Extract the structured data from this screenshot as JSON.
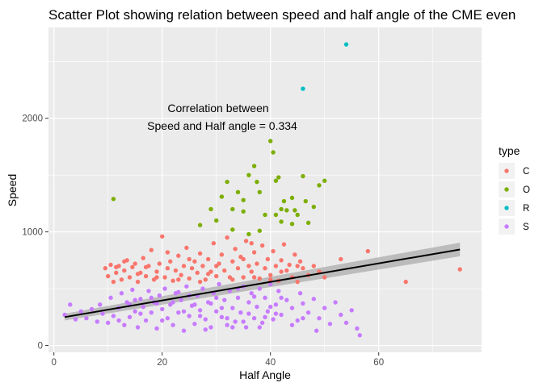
{
  "chart_data": {
    "type": "scatter",
    "title": "Scatter Plot showing relation between speed and half angle of the CME even",
    "xlabel": "Half Angle",
    "ylabel": "Speed",
    "xlim": [
      -1,
      79
    ],
    "ylim": [
      -60,
      2800
    ],
    "x_ticks": [
      0,
      20,
      40,
      60
    ],
    "y_ticks": [
      0,
      1000,
      2000
    ],
    "x_tick_labels": [
      "0",
      "20",
      "40",
      "60"
    ],
    "y_tick_labels": [
      "0",
      "1000",
      "2000"
    ],
    "grid": true,
    "legend": {
      "title": "type",
      "placement": "right",
      "entries": [
        {
          "label": "C",
          "color": "#F8766D"
        },
        {
          "label": "O",
          "color": "#7CAE00"
        },
        {
          "label": "R",
          "color": "#00BFC4"
        },
        {
          "label": "S",
          "color": "#C77CFF"
        }
      ]
    },
    "annotation": {
      "lines": [
        "Correlation between",
        "Speed and Half angle = 0.334"
      ],
      "x": 31.5,
      "y": 1925
    },
    "series": [
      {
        "name": "C",
        "color": "#F8766D",
        "points": [
          [
            9.5,
            680
          ],
          [
            10,
            610
          ],
          [
            10.5,
            710
          ],
          [
            11,
            560
          ],
          [
            11.5,
            640
          ],
          [
            12,
            700
          ],
          [
            12.5,
            580
          ],
          [
            13,
            660
          ],
          [
            13.5,
            750
          ],
          [
            14,
            600
          ],
          [
            14.5,
            690
          ],
          [
            15,
            720
          ],
          [
            15.5,
            560
          ],
          [
            16,
            640
          ],
          [
            16.5,
            770
          ],
          [
            17,
            610
          ],
          [
            17.5,
            700
          ],
          [
            18,
            840
          ],
          [
            18.5,
            580
          ],
          [
            19,
            650
          ],
          [
            19.5,
            720
          ],
          [
            20,
            960
          ],
          [
            20.5,
            600
          ],
          [
            21,
            680
          ],
          [
            21.5,
            740
          ],
          [
            22,
            570
          ],
          [
            22.5,
            660
          ],
          [
            23,
            790
          ],
          [
            23.5,
            620
          ],
          [
            24,
            700
          ],
          [
            24.5,
            860
          ],
          [
            25,
            590
          ],
          [
            25.5,
            680
          ],
          [
            26,
            740
          ],
          [
            26.5,
            640
          ],
          [
            27,
            810
          ],
          [
            27.5,
            700
          ],
          [
            28,
            580
          ],
          [
            28.5,
            760
          ],
          [
            29,
            650
          ],
          [
            29.5,
            900
          ],
          [
            30,
            610
          ],
          [
            30.5,
            720
          ],
          [
            31,
            800
          ],
          [
            31.5,
            660
          ],
          [
            32,
            950
          ],
          [
            32.5,
            600
          ],
          [
            33,
            740
          ],
          [
            33.5,
            850
          ],
          [
            34,
            680
          ],
          [
            34.5,
            780
          ],
          [
            35,
            600
          ],
          [
            35.5,
            920
          ],
          [
            36,
            700
          ],
          [
            36.5,
            650
          ],
          [
            37,
            820
          ],
          [
            37.5,
            720
          ],
          [
            38,
            590
          ],
          [
            38.5,
            880
          ],
          [
            39,
            680
          ],
          [
            39.5,
            760
          ],
          [
            40,
            620
          ],
          [
            40.5,
            830
          ],
          [
            41,
            700
          ],
          [
            41.5,
            570
          ],
          [
            42,
            750
          ],
          [
            42.5,
            890
          ],
          [
            43,
            660
          ],
          [
            43.5,
            710
          ],
          [
            44,
            600
          ],
          [
            44.5,
            800
          ],
          [
            45,
            560
          ],
          [
            45.5,
            740
          ],
          [
            46,
            680
          ],
          [
            47,
            620
          ],
          [
            48,
            700
          ],
          [
            49,
            650
          ],
          [
            50,
            600
          ],
          [
            53,
            760
          ],
          [
            58,
            830
          ],
          [
            65,
            560
          ],
          [
            75,
            670
          ],
          [
            13,
            740
          ],
          [
            17,
            690
          ],
          [
            21,
            820
          ],
          [
            25,
            760
          ],
          [
            30,
            700
          ],
          [
            35,
            760
          ],
          [
            40,
            580
          ],
          [
            45,
            700
          ],
          [
            23,
            580
          ],
          [
            27,
            560
          ],
          [
            33,
            580
          ],
          [
            37,
            600
          ],
          [
            19,
            600
          ],
          [
            11.5,
            690
          ],
          [
            15.5,
            630
          ],
          [
            28.5,
            630
          ],
          [
            42,
            650
          ],
          [
            36.5,
            900
          ]
        ]
      },
      {
        "name": "O",
        "color": "#7CAE00",
        "points": [
          [
            11,
            1290
          ],
          [
            27,
            1060
          ],
          [
            29,
            1200
          ],
          [
            30,
            1100
          ],
          [
            31,
            1310
          ],
          [
            32,
            1440
          ],
          [
            33,
            1200
          ],
          [
            34,
            1350
          ],
          [
            35,
            1280
          ],
          [
            36,
            1500
          ],
          [
            37,
            1580
          ],
          [
            37.5,
            1440
          ],
          [
            38,
            1350
          ],
          [
            39,
            1150
          ],
          [
            40,
            1800
          ],
          [
            40.5,
            1700
          ],
          [
            41,
            1450
          ],
          [
            41.5,
            1480
          ],
          [
            42,
            1200
          ],
          [
            42.5,
            1270
          ],
          [
            43,
            1190
          ],
          [
            44,
            1300
          ],
          [
            44.5,
            1190
          ],
          [
            45,
            1150
          ],
          [
            46,
            1490
          ],
          [
            46.5,
            1270
          ],
          [
            47,
            1080
          ],
          [
            48,
            1220
          ],
          [
            49,
            1410
          ],
          [
            50,
            1450
          ],
          [
            35,
            1180
          ],
          [
            38,
            1010
          ],
          [
            41,
            1150
          ],
          [
            44,
            1070
          ],
          [
            33,
            1020
          ],
          [
            36,
            980
          ],
          [
            42,
            1090
          ]
        ]
      },
      {
        "name": "R",
        "color": "#00BFC4",
        "points": [
          [
            46,
            2260
          ],
          [
            54,
            2650
          ]
        ]
      },
      {
        "name": "S",
        "color": "#C77CFF",
        "points": [
          [
            2,
            270
          ],
          [
            3,
            360
          ],
          [
            4,
            230
          ],
          [
            5,
            300
          ],
          [
            6,
            240
          ],
          [
            7,
            320
          ],
          [
            8,
            210
          ],
          [
            8.5,
            360
          ],
          [
            9,
            280
          ],
          [
            10,
            200
          ],
          [
            10.5,
            420
          ],
          [
            11,
            260
          ],
          [
            12,
            330
          ],
          [
            12.5,
            460
          ],
          [
            13,
            180
          ],
          [
            13.5,
            380
          ],
          [
            14,
            250
          ],
          [
            14.5,
            490
          ],
          [
            15,
            300
          ],
          [
            15.5,
            160
          ],
          [
            16,
            410
          ],
          [
            16.5,
            340
          ],
          [
            17,
            220
          ],
          [
            17.5,
            480
          ],
          [
            18,
            290
          ],
          [
            18.5,
            380
          ],
          [
            19,
            150
          ],
          [
            19.5,
            440
          ],
          [
            20,
            320
          ],
          [
            20.5,
            500
          ],
          [
            21,
            240
          ],
          [
            21.5,
            360
          ],
          [
            22,
            180
          ],
          [
            22.5,
            460
          ],
          [
            23,
            290
          ],
          [
            23.5,
            400
          ],
          [
            24,
            130
          ],
          [
            24.5,
            520
          ],
          [
            25,
            260
          ],
          [
            25.5,
            350
          ],
          [
            26,
            190
          ],
          [
            26.5,
            440
          ],
          [
            27,
            310
          ],
          [
            27.5,
            500
          ],
          [
            28,
            230
          ],
          [
            28.5,
            380
          ],
          [
            29,
            160
          ],
          [
            29.5,
            460
          ],
          [
            30,
            300
          ],
          [
            30.5,
            540
          ],
          [
            31,
            250
          ],
          [
            31.5,
            400
          ],
          [
            32,
            180
          ],
          [
            32.5,
            480
          ],
          [
            33,
            330
          ],
          [
            33.5,
            210
          ],
          [
            34,
            420
          ],
          [
            34.5,
            290
          ],
          [
            35,
            520
          ],
          [
            35.5,
            160
          ],
          [
            36,
            380
          ],
          [
            36.5,
            460
          ],
          [
            37,
            240
          ],
          [
            37.5,
            340
          ],
          [
            38,
            500
          ],
          [
            38.5,
            200
          ],
          [
            39,
            420
          ],
          [
            39.5,
            300
          ],
          [
            40,
            540
          ],
          [
            40.5,
            230
          ],
          [
            41,
            360
          ],
          [
            41.5,
            480
          ],
          [
            42,
            270
          ],
          [
            43,
            400
          ],
          [
            44,
            330
          ],
          [
            45,
            220
          ],
          [
            45.5,
            460
          ],
          [
            46,
            370
          ],
          [
            47,
            290
          ],
          [
            48,
            410
          ],
          [
            49,
            240
          ],
          [
            50,
            330
          ],
          [
            51,
            190
          ],
          [
            52,
            380
          ],
          [
            53,
            270
          ],
          [
            54,
            200
          ],
          [
            55,
            310
          ],
          [
            56,
            150
          ],
          [
            56.5,
            90
          ],
          [
            48.5,
            130
          ],
          [
            12,
            220
          ],
          [
            14,
            360
          ],
          [
            16,
            280
          ],
          [
            18,
            420
          ],
          [
            20,
            220
          ],
          [
            22,
            380
          ],
          [
            24,
            300
          ],
          [
            26,
            360
          ],
          [
            28,
            140
          ],
          [
            30,
            420
          ],
          [
            32,
            240
          ],
          [
            34,
            500
          ],
          [
            36,
            280
          ],
          [
            38,
            160
          ],
          [
            40,
            340
          ],
          [
            42,
            420
          ],
          [
            44,
            180
          ],
          [
            46,
            240
          ],
          [
            15,
            400
          ],
          [
            25,
            440
          ],
          [
            35,
            210
          ],
          [
            27,
            260
          ],
          [
            33,
            160
          ],
          [
            23,
            470
          ],
          [
            29,
            370
          ],
          [
            37,
            430
          ],
          [
            41,
            280
          ],
          [
            19,
            370
          ],
          [
            31,
            330
          ],
          [
            39,
            250
          ]
        ]
      }
    ],
    "trend": {
      "type": "lm",
      "x": [
        2,
        75
      ],
      "y": [
        250,
        845
      ],
      "ci_halfwidth": [
        30,
        60
      ],
      "line_color": "#000000",
      "band_color": "#b0b0b0"
    }
  }
}
